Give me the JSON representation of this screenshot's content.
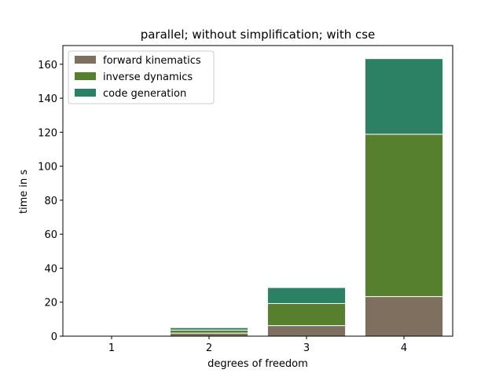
{
  "chart_data": {
    "type": "bar",
    "stacked": true,
    "title": "parallel; without simplification; with cse",
    "xlabel": "degrees of freedom",
    "ylabel": "time in s",
    "categories": [
      "1",
      "2",
      "3",
      "4"
    ],
    "ylim": [
      0,
      171
    ],
    "yticks": [
      0,
      20,
      40,
      60,
      80,
      100,
      120,
      140,
      160
    ],
    "legend_position": "top-left",
    "grid": false,
    "series": [
      {
        "name": "forward kinematics",
        "color": "#7f6f5f",
        "values": [
          0.05,
          1.8,
          6.2,
          23.3
        ]
      },
      {
        "name": "inverse dynamics",
        "color": "#56802e",
        "values": [
          0.05,
          1.8,
          13.0,
          95.5
        ]
      },
      {
        "name": "code generation",
        "color": "#2c8063",
        "values": [
          0.05,
          1.4,
          9.4,
          44.5
        ]
      }
    ]
  }
}
